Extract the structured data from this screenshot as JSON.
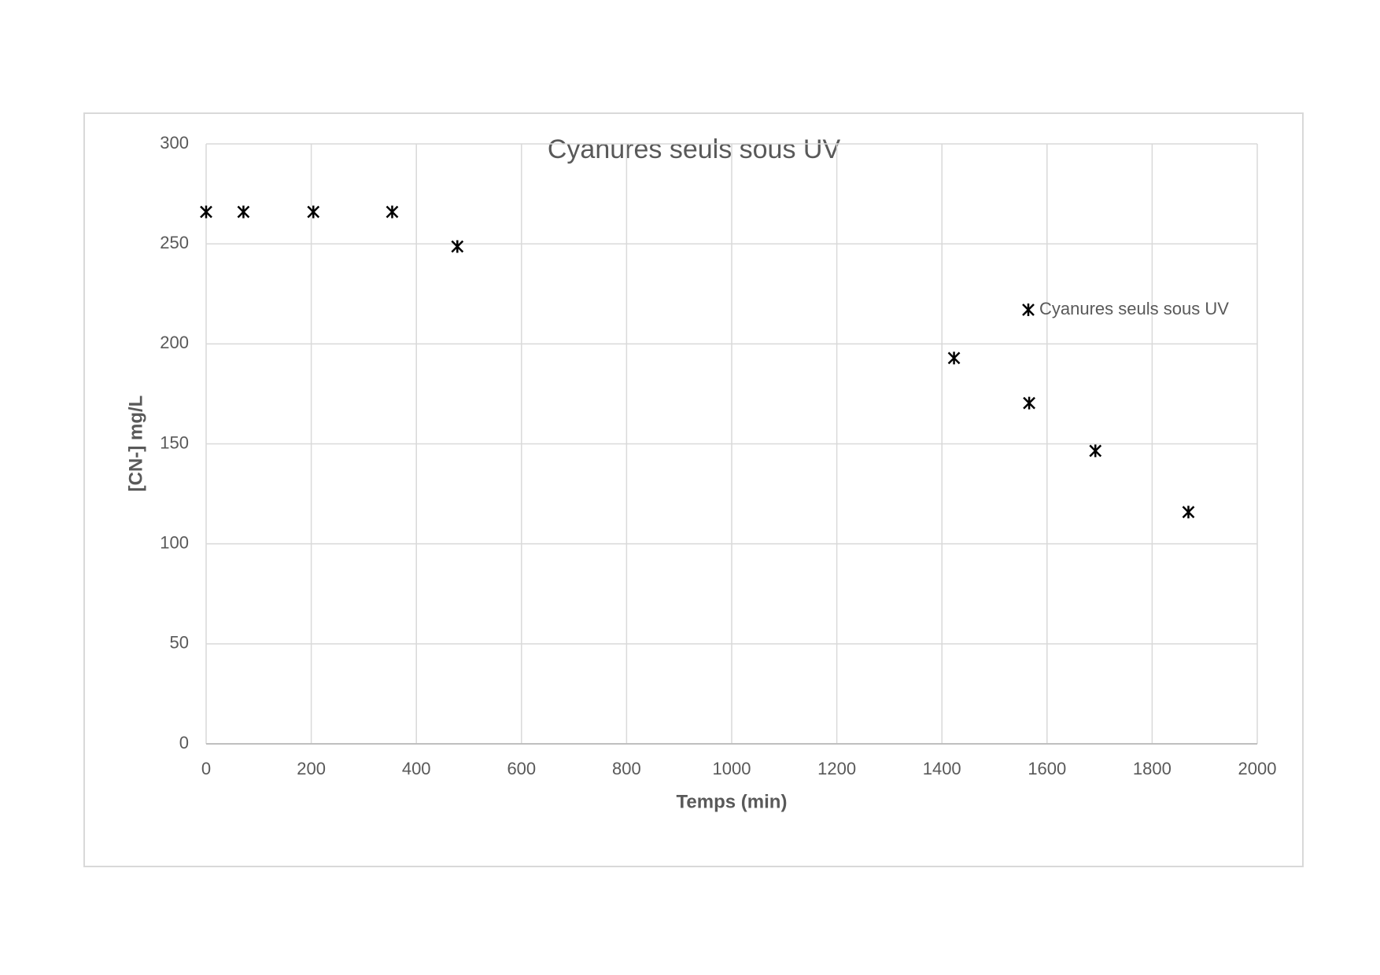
{
  "chart_data": {
    "type": "scatter",
    "title": "Cyanures seuls sous UV",
    "x_label": "Temps (min)",
    "y_label": "[CN-] mg/L",
    "series": [
      {
        "name": "Cyanures seuls sous UV",
        "color": "#000000",
        "x": [
          0,
          71,
          204,
          354,
          478,
          1423,
          1566,
          1692,
          1869
        ],
        "values": [
          266,
          266,
          266,
          266,
          248.7,
          192.9,
          170.4,
          146.5,
          115.9
        ]
      }
    ],
    "xlim": [
      0,
      2000
    ],
    "xticks": [
      0,
      200,
      400,
      600,
      800,
      1000,
      1200,
      1400,
      1600,
      1800,
      2000
    ],
    "ylim": [
      0,
      300
    ],
    "yticks": [
      0,
      50,
      100,
      150,
      200,
      250,
      300
    ],
    "grid": true,
    "legend": "right"
  }
}
